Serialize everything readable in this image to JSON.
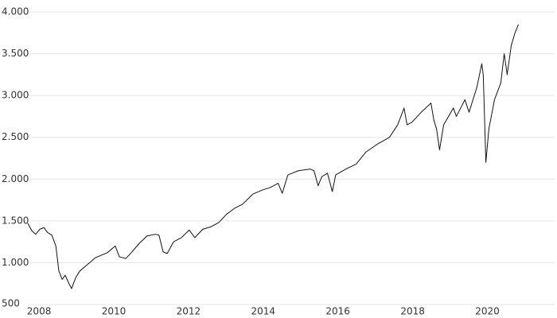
{
  "chart_data": {
    "type": "line",
    "x": [
      2007.7,
      2007.81,
      2007.91,
      2008.02,
      2008.13,
      2008.23,
      2008.34,
      2008.45,
      2008.53,
      2008.62,
      2008.7,
      2008.79,
      2008.87,
      2008.98,
      2009.09,
      2009.3,
      2009.51,
      2009.83,
      2010.04,
      2010.15,
      2010.32,
      2010.47,
      2010.68,
      2010.89,
      2011.11,
      2011.21,
      2011.32,
      2011.43,
      2011.6,
      2011.81,
      2012.02,
      2012.17,
      2012.38,
      2012.6,
      2012.81,
      2013.02,
      2013.23,
      2013.45,
      2013.72,
      2013.98,
      2014.19,
      2014.4,
      2014.51,
      2014.66,
      2014.94,
      2015.26,
      2015.36,
      2015.47,
      2015.57,
      2015.72,
      2015.85,
      2015.94,
      2016.21,
      2016.49,
      2016.74,
      2017.06,
      2017.38,
      2017.6,
      2017.77,
      2017.85,
      2017.98,
      2018.23,
      2018.49,
      2018.57,
      2018.64,
      2018.72,
      2018.83,
      2019.09,
      2019.17,
      2019.4,
      2019.51,
      2019.72,
      2019.85,
      2019.89,
      2019.96,
      2020.04,
      2020.19,
      2020.36,
      2020.45,
      2020.53,
      2020.64,
      2020.74,
      2020.83
    ],
    "series": [
      {
        "color": "#111111",
        "values": [
          1470,
          1380,
          1340,
          1400,
          1420,
          1360,
          1330,
          1200,
          900,
          800,
          850,
          760,
          690,
          820,
          900,
          980,
          1060,
          1120,
          1200,
          1070,
          1050,
          1120,
          1230,
          1320,
          1340,
          1330,
          1130,
          1110,
          1250,
          1300,
          1390,
          1300,
          1400,
          1430,
          1480,
          1580,
          1650,
          1700,
          1820,
          1870,
          1900,
          1950,
          1830,
          2050,
          2100,
          2120,
          2100,
          1920,
          2030,
          2070,
          1850,
          2050,
          2120,
          2180,
          2320,
          2420,
          2500,
          2650,
          2850,
          2650,
          2680,
          2800,
          2910,
          2700,
          2600,
          2350,
          2650,
          2850,
          2750,
          2950,
          2800,
          3100,
          3380,
          3250,
          2200,
          2600,
          2950,
          3150,
          3500,
          3250,
          3600,
          3750,
          3850
        ]
      }
    ],
    "xlim": [
      2007.7,
      2021.8
    ],
    "xticks": [
      2008,
      2010,
      2012,
      2014,
      2016,
      2018,
      2020
    ],
    "ylim": [
      500,
      4000
    ],
    "yticks": [
      500,
      {
        "value": 1000,
        "label": "1.000"
      },
      {
        "value": 1500,
        "label": "1.500"
      },
      {
        "value": 2000,
        "label": "2.000"
      },
      {
        "value": 2500,
        "label": "2.500"
      },
      {
        "value": 3000,
        "label": "3.000"
      },
      {
        "value": 3500,
        "label": "3.500"
      },
      {
        "value": 4000,
        "label": "4.000"
      }
    ],
    "grid": true
  }
}
